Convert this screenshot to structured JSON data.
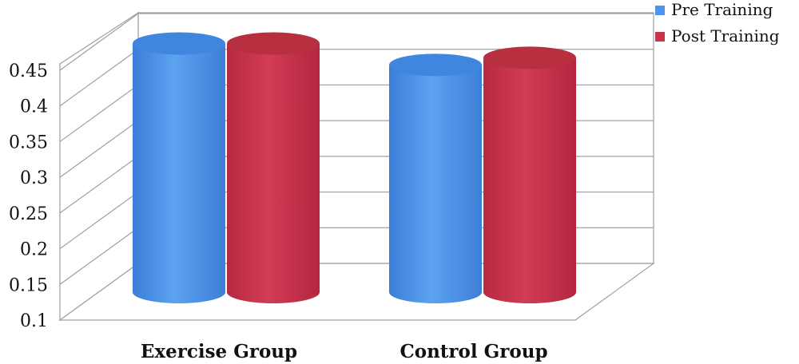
{
  "chart_data": {
    "type": "bar",
    "style": "3d-cylinder",
    "categories": [
      "Exercise Group",
      "Control Group"
    ],
    "series": [
      {
        "name": "Pre Training",
        "values": [
          0.45,
          0.42
        ],
        "color": "#4f93e8"
      },
      {
        "name": "Post Training",
        "values": [
          0.45,
          0.43
        ],
        "color": "#c9344b"
      }
    ],
    "ylim": [
      0.1,
      0.45
    ],
    "yticks": [
      "0.1",
      "0.15",
      "0.2",
      "0.25",
      "0.3",
      "0.35",
      "0.4",
      "0.45"
    ],
    "grid": true,
    "legend_position": "top-right"
  }
}
